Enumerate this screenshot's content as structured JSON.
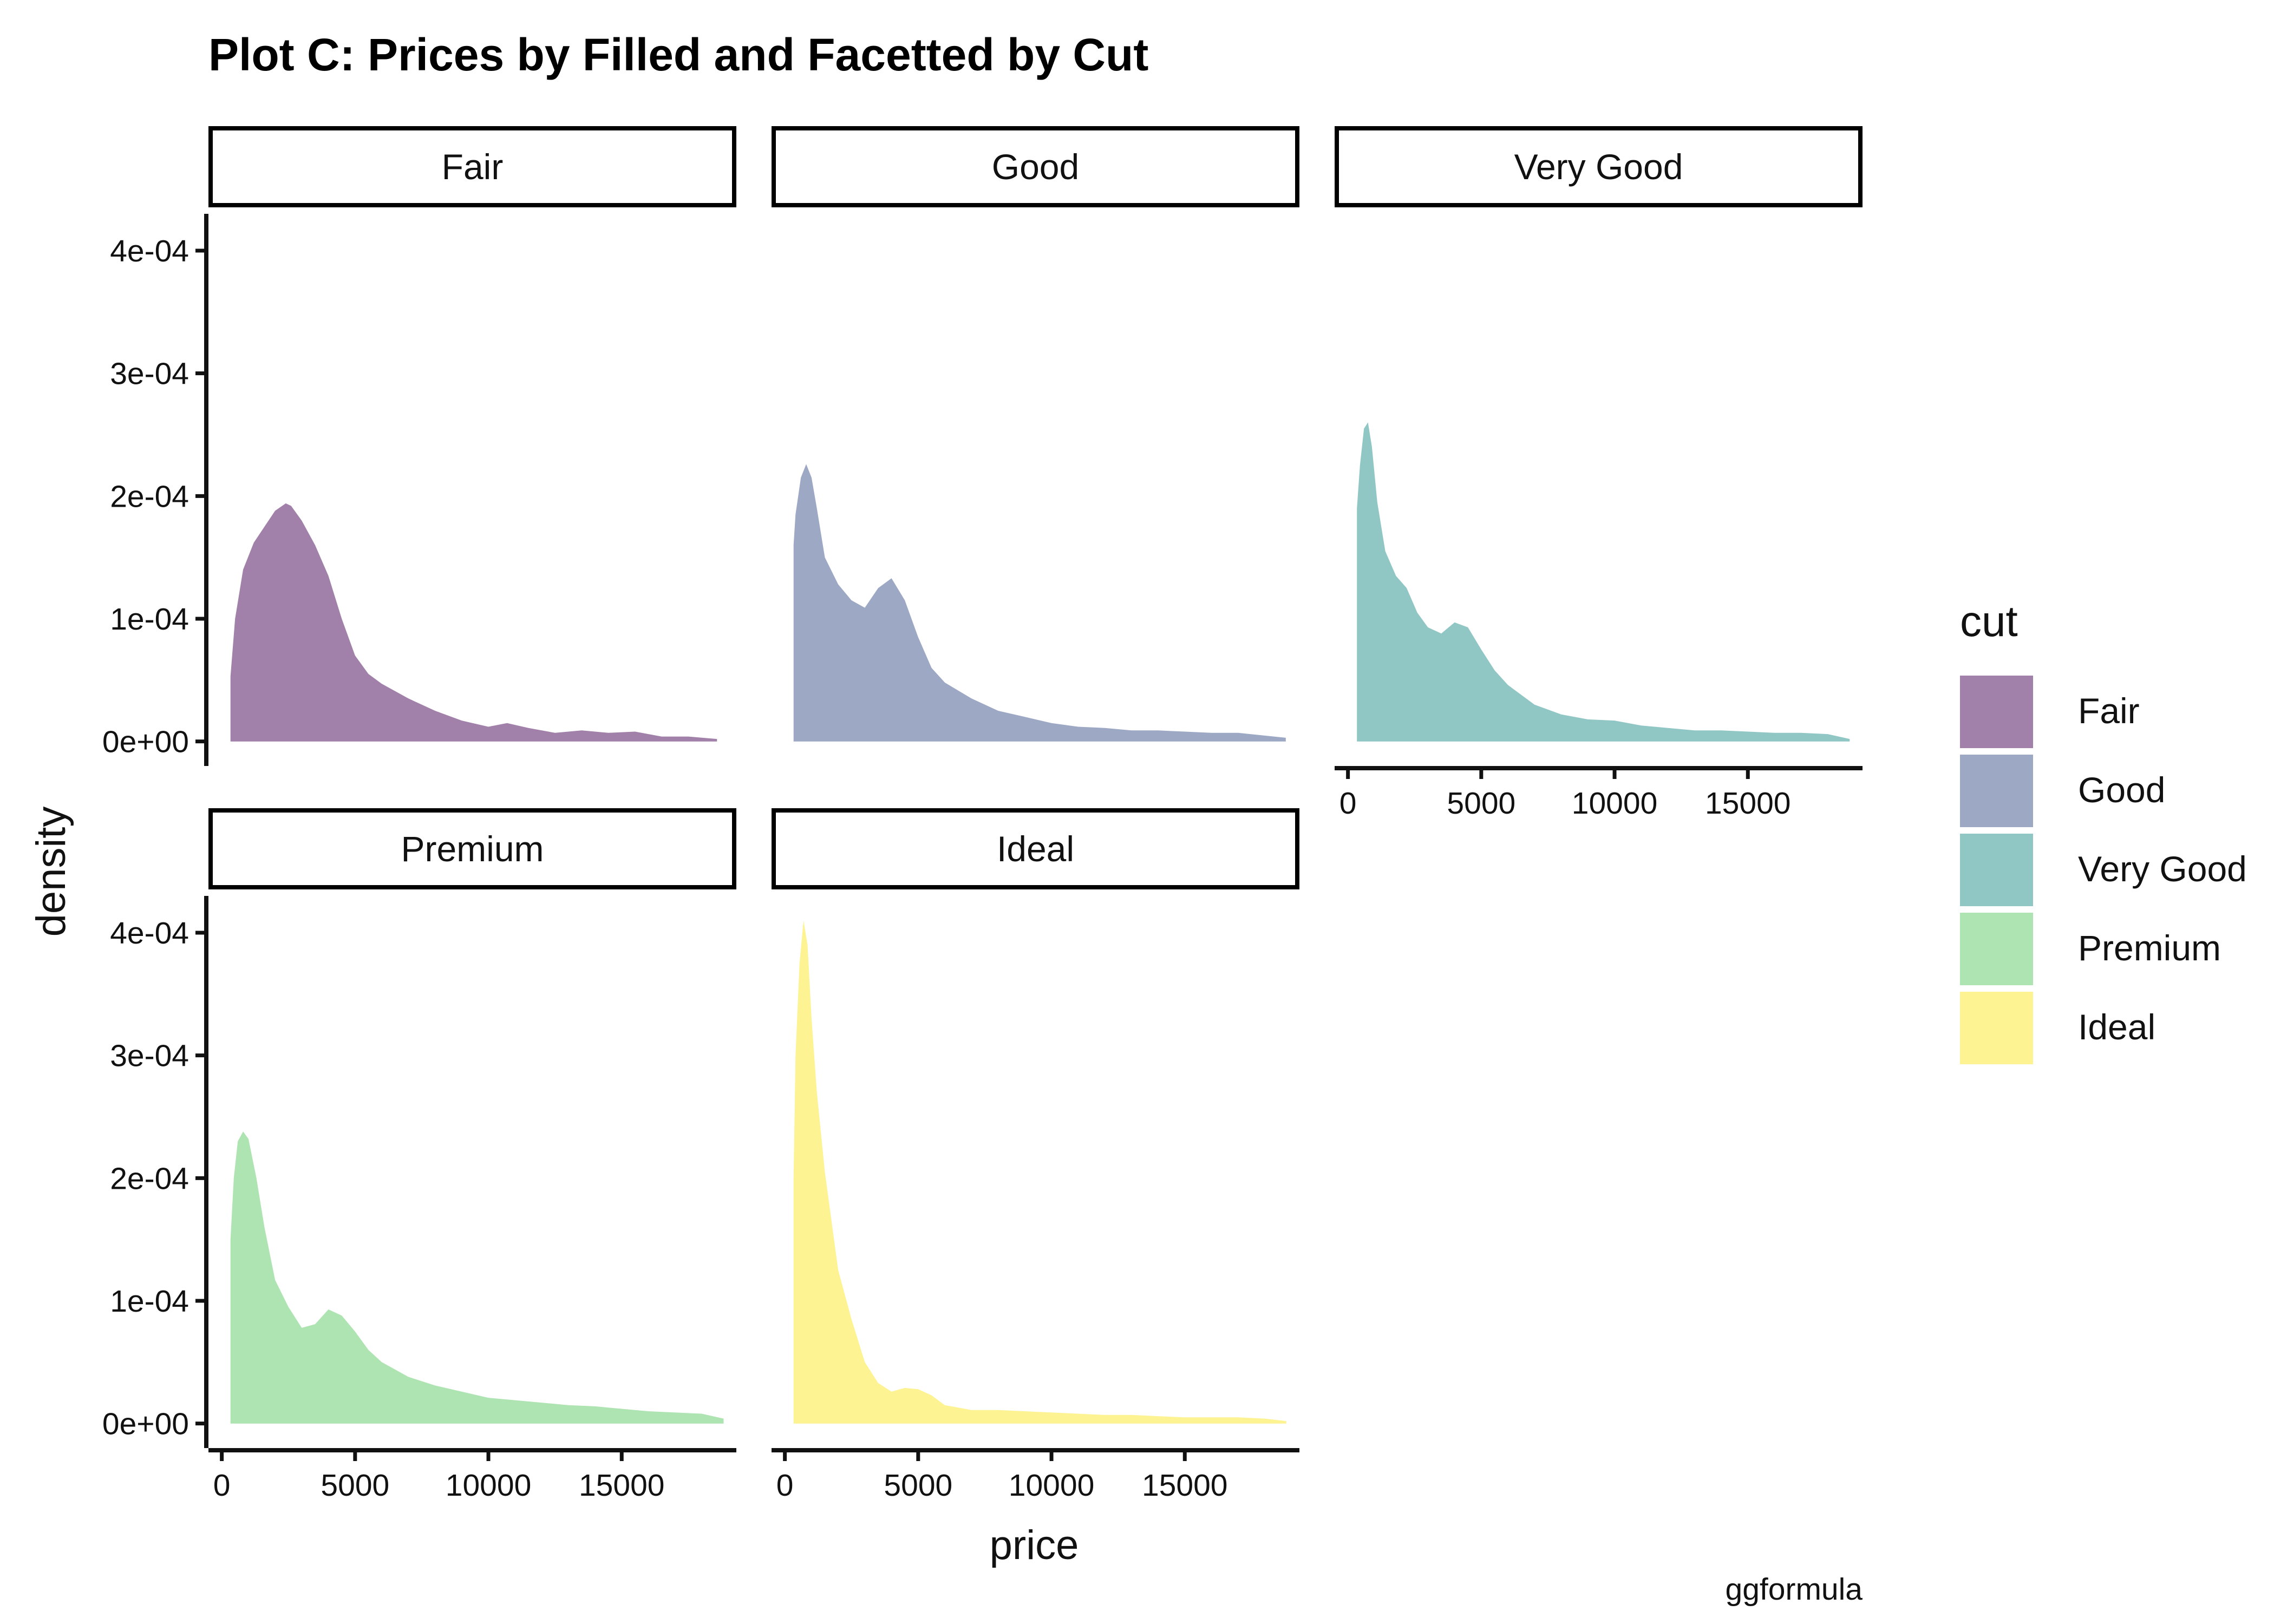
{
  "chart_data": {
    "type": "area",
    "title": "Plot C: Prices by Filled and Facetted by Cut",
    "xlabel": "price",
    "ylabel": "density",
    "caption": "ggformula",
    "xlim": [
      -500,
      19300
    ],
    "ylim": [
      -2e-05,
      0.00043
    ],
    "x_ticks": [
      0,
      5000,
      10000,
      15000
    ],
    "x_tick_labels": [
      "0",
      "5000",
      "10000",
      "15000"
    ],
    "y_ticks": [
      0,
      0.0001,
      0.0002,
      0.0003,
      0.0004
    ],
    "y_tick_labels": [
      "0e+00",
      "1e-04",
      "2e-04",
      "3e-04",
      "4e-04"
    ],
    "grid": false,
    "fill_opacity": 0.5,
    "legend": {
      "title": "cut",
      "position": "right",
      "entries": [
        "Fair",
        "Good",
        "Very Good",
        "Premium",
        "Ideal"
      ]
    },
    "panels": [
      {
        "name": "Fair",
        "color": "#440154",
        "x": [
          326,
          500,
          800,
          1200,
          1600,
          2000,
          2400,
          2600,
          3000,
          3500,
          4000,
          4500,
          5000,
          5500,
          6000,
          7000,
          8000,
          9000,
          10000,
          10700,
          11500,
          12500,
          13500,
          14500,
          15500,
          16500,
          17500,
          18574
        ],
        "y": [
          5.3e-05,
          0.0001,
          0.00014,
          0.000162,
          0.000175,
          0.000188,
          0.000194,
          0.000192,
          0.00018,
          0.00016,
          0.000135,
          0.0001,
          7e-05,
          5.5e-05,
          4.7e-05,
          3.5e-05,
          2.5e-05,
          1.7e-05,
          1.2e-05,
          1.5e-05,
          1.1e-05,
          7e-06,
          9e-06,
          7e-06,
          8e-06,
          4e-06,
          4e-06,
          2e-06
        ]
      },
      {
        "name": "Good",
        "color": "#3b528b",
        "x": [
          327,
          400,
          600,
          800,
          1000,
          1200,
          1500,
          2000,
          2500,
          3000,
          3500,
          4000,
          4500,
          5000,
          5500,
          6000,
          7000,
          8000,
          9000,
          10000,
          11000,
          12000,
          13000,
          14000,
          15000,
          16000,
          17000,
          18788
        ],
        "y": [
          0.00016,
          0.000185,
          0.000215,
          0.000226,
          0.000215,
          0.00019,
          0.00015,
          0.000128,
          0.000115,
          0.000109,
          0.000125,
          0.000133,
          0.000115,
          8.5e-05,
          6e-05,
          4.8e-05,
          3.5e-05,
          2.5e-05,
          2e-05,
          1.5e-05,
          1.2e-05,
          1.1e-05,
          9e-06,
          9e-06,
          8e-06,
          7e-06,
          7e-06,
          3e-06
        ]
      },
      {
        "name": "Very Good",
        "color": "#21908c",
        "x": [
          336,
          450,
          600,
          750,
          900,
          1100,
          1400,
          1800,
          2200,
          2600,
          3000,
          3500,
          4000,
          4500,
          5000,
          5500,
          6000,
          7000,
          8000,
          9000,
          10000,
          11000,
          12000,
          13000,
          14000,
          15000,
          16000,
          17000,
          18000,
          18818
        ],
        "y": [
          0.00019,
          0.000225,
          0.000255,
          0.00026,
          0.00024,
          0.000195,
          0.000155,
          0.000135,
          0.000125,
          0.000105,
          9.3e-05,
          8.8e-05,
          9.7e-05,
          9.3e-05,
          7.5e-05,
          5.8e-05,
          4.6e-05,
          3e-05,
          2.2e-05,
          1.8e-05,
          1.7e-05,
          1.3e-05,
          1.1e-05,
          9e-06,
          9e-06,
          8e-06,
          7e-06,
          7e-06,
          6e-06,
          2e-06
        ]
      },
      {
        "name": "Premium",
        "color": "#5dc963",
        "x": [
          326,
          450,
          600,
          800,
          1000,
          1300,
          1600,
          2000,
          2500,
          3000,
          3500,
          4000,
          4500,
          5000,
          5500,
          6000,
          7000,
          8000,
          9000,
          10000,
          11000,
          12000,
          13000,
          14000,
          15000,
          16000,
          17000,
          18000,
          18823
        ],
        "y": [
          0.00015,
          0.0002,
          0.00023,
          0.000238,
          0.000232,
          0.0002,
          0.00016,
          0.000117,
          9.5e-05,
          7.8e-05,
          8.1e-05,
          9.3e-05,
          8.8e-05,
          7.5e-05,
          6e-05,
          5e-05,
          3.8e-05,
          3.1e-05,
          2.6e-05,
          2.1e-05,
          1.9e-05,
          1.7e-05,
          1.5e-05,
          1.4e-05,
          1.2e-05,
          1e-05,
          9e-06,
          8e-06,
          4e-06
        ]
      },
      {
        "name": "Ideal",
        "color": "#fde725",
        "x": [
          326,
          400,
          550,
          700,
          850,
          1000,
          1200,
          1500,
          2000,
          2500,
          3000,
          3500,
          4000,
          4500,
          5000,
          5500,
          6000,
          7000,
          8000,
          9000,
          10000,
          11000,
          12000,
          13000,
          14000,
          15000,
          16000,
          17000,
          18000,
          18806
        ],
        "y": [
          0.0002,
          0.0003,
          0.000375,
          0.00041,
          0.00039,
          0.00033,
          0.00027,
          0.000205,
          0.000125,
          8.5e-05,
          5e-05,
          3.3e-05,
          2.6e-05,
          2.9e-05,
          2.8e-05,
          2.3e-05,
          1.5e-05,
          1.1e-05,
          1.1e-05,
          1e-05,
          9e-06,
          8e-06,
          7e-06,
          7e-06,
          6e-06,
          5e-06,
          5e-06,
          5e-06,
          4e-06,
          2e-06
        ]
      }
    ]
  }
}
